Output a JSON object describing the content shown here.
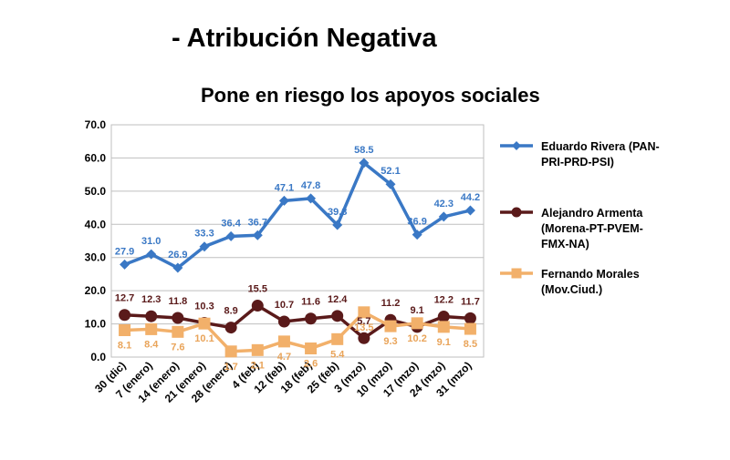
{
  "page": {
    "heading": "- Atribución Negativa",
    "subtitle": "Pone en riesgo los apoyos sociales"
  },
  "chart_data": {
    "type": "line",
    "title": "Pone en riesgo los apoyos sociales",
    "categories": [
      "30 (dic)",
      "7 (enero)",
      "14 (enero)",
      "21 (enero)",
      "28 (enero)",
      "4 (feb)",
      "12 (feb)",
      "18 (feb)",
      "25 (feb)",
      "3 (mzo)",
      "10 (mzo)",
      "17 (mzo)",
      "24 (mzo)",
      "31 (mzo)"
    ],
    "ylim": [
      0,
      70
    ],
    "yticks": [
      "0.0",
      "10.0",
      "20.0",
      "30.0",
      "40.0",
      "50.0",
      "60.0",
      "70.0"
    ],
    "grid": true,
    "legend_position": "right",
    "series": [
      {
        "name": "Eduardo Rivera (PAN-PRI-PRD-PSI)",
        "legend_lines": [
          "Eduardo Rivera (PAN-",
          "PRI-PRD-PSI)"
        ],
        "color": "#3a78c5",
        "label_color": "#3a78c5",
        "marker": "diamond",
        "values": [
          27.9,
          31.0,
          26.9,
          33.3,
          36.4,
          36.7,
          47.1,
          47.8,
          39.8,
          58.5,
          52.1,
          36.9,
          42.3,
          44.2
        ],
        "labels": [
          "27.9",
          "31.0",
          "26.9",
          "33.3",
          "36.4",
          "36.7",
          "47.1",
          "47.8",
          "39.8",
          "58.5",
          "52.1",
          "36.9",
          "42.3",
          "44.2"
        ]
      },
      {
        "name": "Alejandro Armenta (Morena-PT-PVEM-FMX-NA)",
        "legend_lines": [
          "Alejandro Armenta",
          "(Morena-PT-PVEM-",
          "FMX-NA)"
        ],
        "color": "#5a1a1a",
        "label_color": "#5a1a1a",
        "marker": "circle",
        "values": [
          12.7,
          12.3,
          11.8,
          10.3,
          8.9,
          15.5,
          10.7,
          11.6,
          12.4,
          5.7,
          11.2,
          9.1,
          12.2,
          11.7
        ],
        "labels": [
          "12.7",
          "12.3",
          "11.8",
          "10.3",
          "8.9",
          "15.5",
          "10.7",
          "11.6",
          "12.4",
          "5.7",
          "11.2",
          "9.1",
          "12.2",
          "11.7"
        ]
      },
      {
        "name": "Fernando Morales (Mov.Ciud.)",
        "legend_lines": [
          "Fernando Morales",
          "(Mov.Ciud.)"
        ],
        "color": "#f2b06a",
        "label_color": "#e9a45a",
        "marker": "square",
        "values": [
          8.1,
          8.4,
          7.6,
          10.1,
          1.7,
          2.1,
          4.7,
          2.6,
          5.4,
          13.5,
          9.3,
          10.2,
          9.1,
          8.5
        ],
        "labels": [
          "8.1",
          "8.4",
          "7.6",
          "10.1",
          "1.7",
          "2.1",
          "4.7",
          "2.6",
          "5.4",
          "13.5",
          "9.3",
          "10.2",
          "9.1",
          "8.5"
        ]
      }
    ]
  }
}
